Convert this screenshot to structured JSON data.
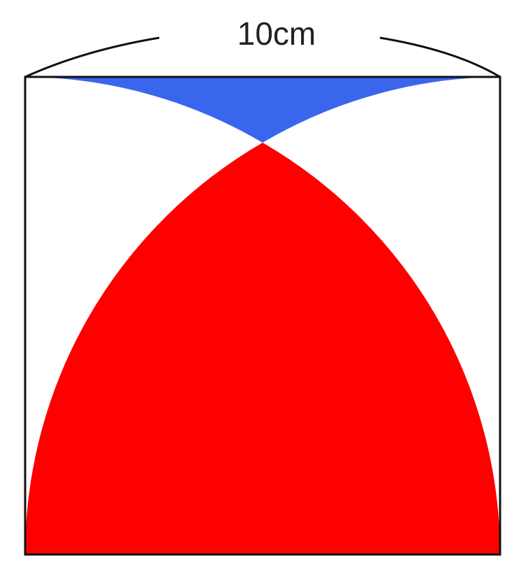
{
  "dimension": {
    "label": "10cm"
  },
  "colors": {
    "red_region": "#ff0000",
    "blue_region": "#3a66ee",
    "outline": "#111111",
    "background": "#ffffff"
  }
}
